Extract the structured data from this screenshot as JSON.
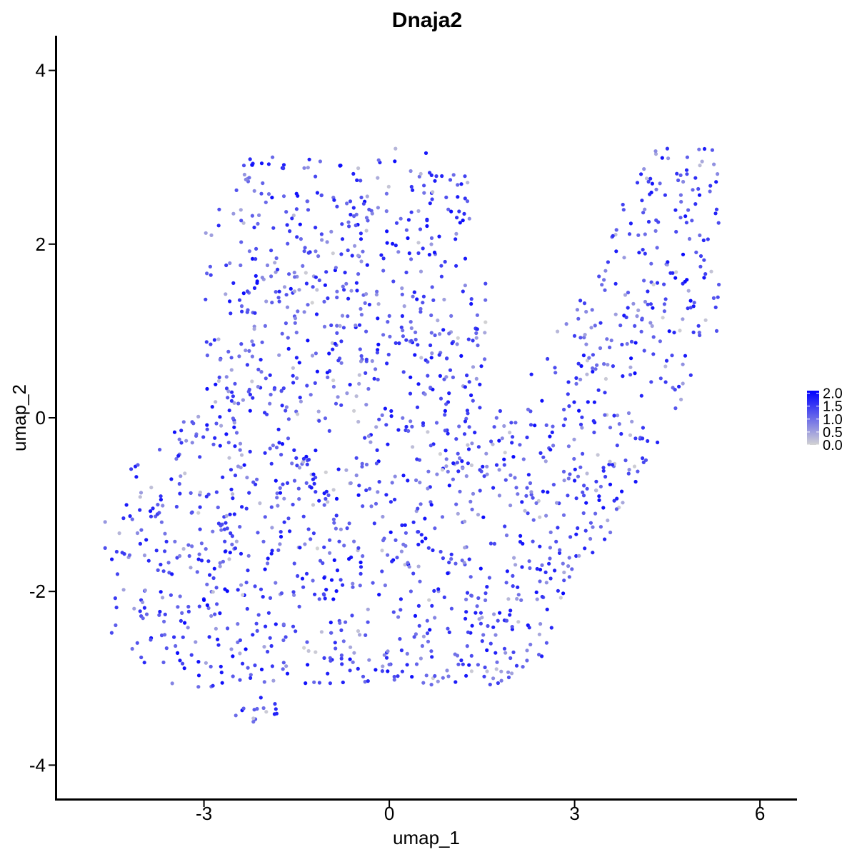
{
  "chart_data": {
    "type": "scatter",
    "title": "Dnaja2",
    "xlabel": "umap_1",
    "ylabel": "umap_2",
    "xlim": [
      -5.4,
      6.6
    ],
    "ylim": [
      -4.4,
      4.4
    ],
    "xticks": [
      -3,
      0,
      3,
      6
    ],
    "yticks": [
      -4,
      -2,
      0,
      2,
      4
    ],
    "xtick_labels": [
      "-3",
      "0",
      "3",
      "6"
    ],
    "ytick_labels": [
      "-4",
      "-2",
      "0",
      "2",
      "4"
    ],
    "grid": false,
    "legend": {
      "placement": "right",
      "type": "colorbar",
      "title": "",
      "ticks": [
        0.0,
        0.5,
        1.0,
        1.5,
        2.0
      ],
      "tick_labels": [
        "0.0",
        "0.5",
        "1.0",
        "1.5",
        "2.0"
      ],
      "range": [
        0.0,
        2.1
      ]
    },
    "color_scale": {
      "low": "#d3d3d3",
      "high": "#0000ff"
    },
    "n_points_approx": 1800,
    "point_cloud": {
      "description_hint": "dense cloud of cells shaded by Dnaja2 expression",
      "regions": [
        {
          "name": "upper-left lobe",
          "xrange": [
            -3.2,
            1.2
          ],
          "yrange": [
            0.0,
            3.1
          ]
        },
        {
          "name": "lower-left body",
          "xrange": [
            -4.6,
            2.0
          ],
          "yrange": [
            -3.5,
            0.0
          ]
        },
        {
          "name": "right arm",
          "xrange": [
            1.0,
            5.4
          ],
          "yrange": [
            -1.8,
            3.0
          ]
        }
      ],
      "sample_points": [
        {
          "x": -4.6,
          "y": -1.2,
          "v": 0.6
        },
        {
          "x": -4.6,
          "y": -1.5,
          "v": 1.3
        },
        {
          "x": -4.4,
          "y": -1.8,
          "v": 1.4
        },
        {
          "x": -3.0,
          "y": -2.1,
          "v": 2.1
        },
        {
          "x": -2.2,
          "y": -3.5,
          "v": 1.0
        },
        {
          "x": 0.1,
          "y": 3.1,
          "v": 0.3
        },
        {
          "x": 4.5,
          "y": 3.1,
          "v": 1.6
        },
        {
          "x": 5.3,
          "y": 1.0,
          "v": 1.3
        },
        {
          "x": 5.3,
          "y": 2.4,
          "v": 1.5
        },
        {
          "x": 1.5,
          "y": -2.3,
          "v": 0.4
        },
        {
          "x": 3.2,
          "y": 0.5,
          "v": 0.3
        },
        {
          "x": 3.9,
          "y": -0.2,
          "v": 0.2
        },
        {
          "x": 0.7,
          "y": 2.6,
          "v": 0.2
        },
        {
          "x": -1.2,
          "y": 0.4,
          "v": 1.4
        },
        {
          "x": 2.3,
          "y": 0.5,
          "v": 1.8
        },
        {
          "x": -0.5,
          "y": -1.5,
          "v": 1.4
        }
      ]
    }
  }
}
